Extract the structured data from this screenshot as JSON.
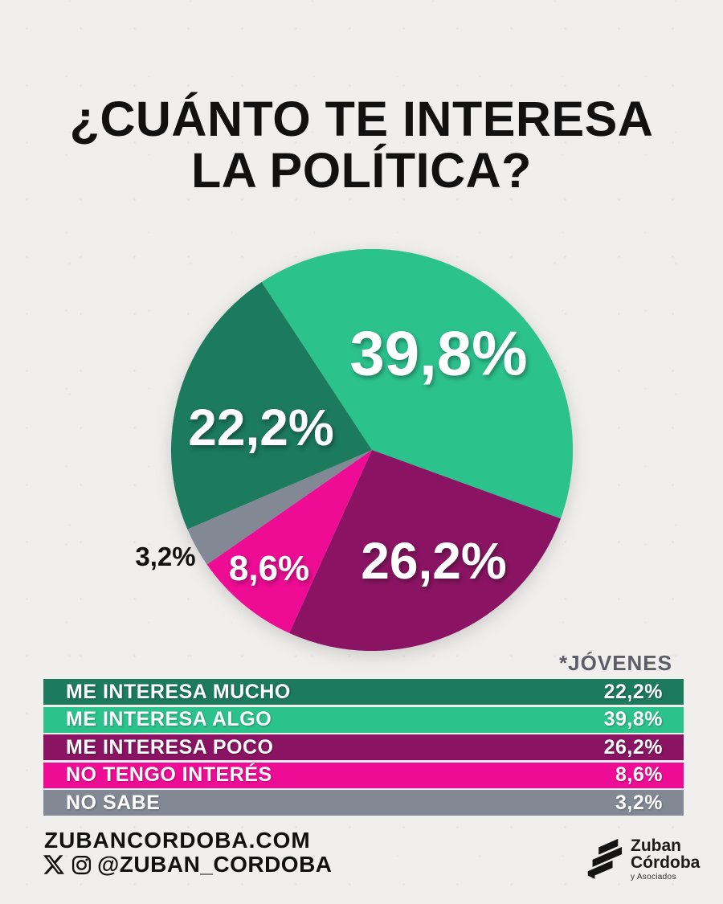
{
  "title": {
    "line1": "¿CUÁNTO TE INTERESA",
    "line2": "LA POLÍTICA?"
  },
  "chart_data": {
    "type": "pie",
    "title": "¿Cuánto te interesa la política?",
    "annotation": "*JÓVENES",
    "start_angle_deg": -33.3,
    "direction": "clockwise",
    "slices": [
      {
        "label": "ME INTERESA ALGO",
        "value": 39.8,
        "display": "39,8%",
        "color": "#2cc28e"
      },
      {
        "label": "ME INTERESA POCO",
        "value": 26.2,
        "display": "26,2%",
        "color": "#8a1463"
      },
      {
        "label": "NO TENGO INTERÉS",
        "value": 8.6,
        "display": "8,6%",
        "color": "#ef0c95"
      },
      {
        "label": "NO SABE",
        "value": 3.2,
        "display": "3,2%",
        "color": "#828995"
      },
      {
        "label": "ME INTERESA MUCHO",
        "value": 22.2,
        "display": "22,2%",
        "color": "#1c7a5d"
      }
    ]
  },
  "legend": {
    "note": "*JÓVENES",
    "rows": [
      {
        "label": "ME INTERESA MUCHO",
        "value": "22,2%",
        "color": "#1c7a5d"
      },
      {
        "label": "ME INTERESA ALGO",
        "value": "39,8%",
        "color": "#2cc28e"
      },
      {
        "label": "ME INTERESA POCO",
        "value": "26,2%",
        "color": "#8a1463"
      },
      {
        "label": "NO TENGO INTERÉS",
        "value": "8,6%",
        "color": "#ef0c95"
      },
      {
        "label": "NO SABE",
        "value": "3,2%",
        "color": "#828995"
      }
    ]
  },
  "footer": {
    "website": "ZUBANCORDOBA.COM",
    "handle": "@ZUBAN_CORDOBA",
    "logo": {
      "line1": "Zuban",
      "line2": "Córdoba",
      "line3": "y Asociados"
    }
  }
}
